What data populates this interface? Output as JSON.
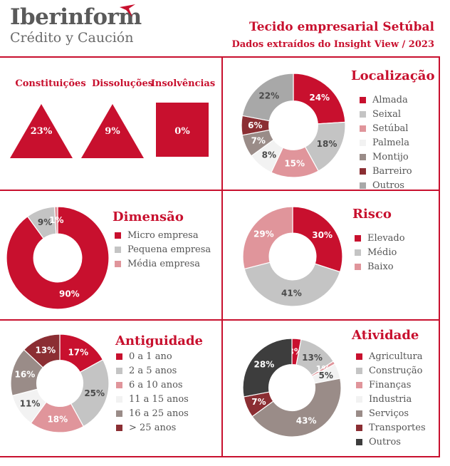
{
  "header": {
    "logo_name": "Iberinform",
    "logo_tagline": "Crédito y Caución",
    "title": "Tecido empresarial Setúbal",
    "subtitle": "Dados extraídos do Insight View / 2023"
  },
  "colors": {
    "accent": "#c8102e",
    "light_grey": "#c4c4c4",
    "pink": "#e0959b",
    "very_light": "#f2f2f2",
    "brown_grey": "#9a8c88",
    "dark_red": "#8b2e33",
    "mid_grey": "#a8a8a8",
    "dark": "#3d3d3d",
    "text_grey": "#4a4a4a"
  },
  "indicators": [
    {
      "label": "Constituições",
      "value": "23%",
      "shape": "triangle-up"
    },
    {
      "label": "Dissoluções",
      "value": "9%",
      "shape": "triangle-up"
    },
    {
      "label": "Insolvências",
      "value": "0%",
      "shape": "square"
    }
  ],
  "chart_data": [
    {
      "type": "pie",
      "title": "Localização",
      "categories": [
        "Almada",
        "Seixal",
        "Setúbal",
        "Palmela",
        "Montijo",
        "Barreiro",
        "Outros"
      ],
      "values": [
        24,
        18,
        15,
        8,
        7,
        6,
        22
      ],
      "labels": [
        "24%",
        "18%",
        "15%",
        "8%",
        "7%",
        "6%",
        "22%"
      ],
      "colors": [
        "#c8102e",
        "#c4c4c4",
        "#e0959b",
        "#f2f2f2",
        "#9a8c88",
        "#8b2e33",
        "#a8a8a8"
      ],
      "legend": "right"
    },
    {
      "type": "pie",
      "title": "Dimensão",
      "categories": [
        "Micro empresa",
        "Pequena empresa",
        "Média empresa"
      ],
      "values": [
        90,
        9,
        1
      ],
      "labels": [
        "90%",
        "9%",
        "1%"
      ],
      "colors": [
        "#c8102e",
        "#c4c4c4",
        "#e0959b"
      ],
      "legend": "right"
    },
    {
      "type": "pie",
      "title": "Risco",
      "categories": [
        "Elevado",
        "Médio",
        "Baixo"
      ],
      "values": [
        30,
        41,
        29
      ],
      "labels": [
        "30%",
        "41%",
        "29%"
      ],
      "colors": [
        "#c8102e",
        "#c4c4c4",
        "#e0959b"
      ],
      "legend": "right"
    },
    {
      "type": "pie",
      "title": "Antiguidade",
      "categories": [
        "0 a 1 ano",
        "2 a 5 anos",
        "6 a 10 anos",
        "11 a 15 anos",
        "16 a 25 anos",
        "> 25 anos"
      ],
      "values": [
        17,
        25,
        18,
        11,
        16,
        13
      ],
      "labels": [
        "17%",
        "25%",
        "18%",
        "11%",
        "16%",
        "13%"
      ],
      "colors": [
        "#c8102e",
        "#c4c4c4",
        "#e0959b",
        "#f2f2f2",
        "#9a8c88",
        "#8b2e33"
      ],
      "legend": "right"
    },
    {
      "type": "pie",
      "title": "Atividade",
      "categories": [
        "Agricultura",
        "Construção",
        "Finanças",
        "Industria",
        "Serviços",
        "Transportes",
        "Outros"
      ],
      "values": [
        3,
        13,
        1,
        5,
        43,
        7,
        28
      ],
      "labels": [
        "3%",
        "13%",
        "1%",
        "5%",
        "43%",
        "7%",
        "28%"
      ],
      "colors": [
        "#c8102e",
        "#c4c4c4",
        "#e0959b",
        "#f2f2f2",
        "#9a8c88",
        "#8b2e33",
        "#3d3d3d"
      ],
      "legend": "right"
    }
  ]
}
